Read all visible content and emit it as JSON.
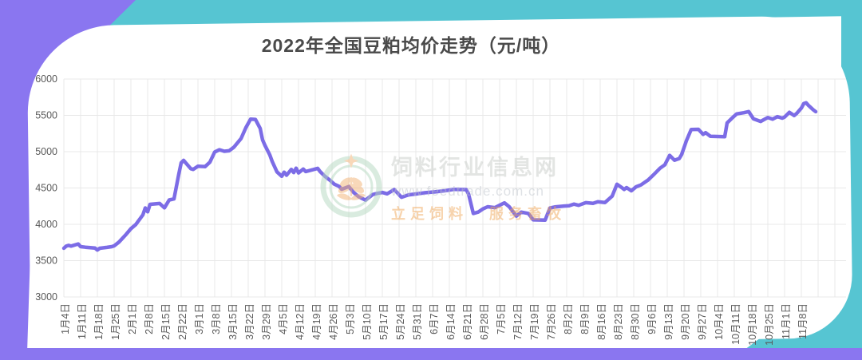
{
  "page": {
    "title": "2022年全国豆粕均价走势（元/吨）"
  },
  "watermark": {
    "site_name": "饲料行业信息网",
    "url": "www.feedtrade.com.cn",
    "slogan": "立足饲料 服务畜牧"
  },
  "colors": {
    "teal": "#56c5d2",
    "purple_shape": "#8a76f0",
    "line": "#7c6ce6",
    "grid": "#e8e8e8",
    "axis_text": "#595959",
    "title_text": "#4a4a4a",
    "watermark_green": "#b5d9c0",
    "watermark_orange": "#f2b275"
  },
  "chart_data": {
    "type": "line",
    "title": "2022年全国豆粕均价走势（元/吨）",
    "ylabel": "元/吨",
    "ylim": [
      3000,
      6000
    ],
    "y_ticks": [
      6000,
      5500,
      5000,
      4500,
      4000,
      3500,
      3000
    ],
    "grid": true,
    "legend": "none",
    "x_tick_interval_days": 7,
    "x_tick_labels": [
      "1月4日",
      "1月11日",
      "1月18日",
      "1月25日",
      "2月1日",
      "2月8日",
      "2月15日",
      "2月22日",
      "3月1日",
      "3月8日",
      "3月15日",
      "3月22日",
      "3月29日",
      "4月5日",
      "4月12日",
      "4月19日",
      "4月26日",
      "5月3日",
      "5月10日",
      "5月17日",
      "5月24日",
      "5月31日",
      "6月7日",
      "6月14日",
      "6月21日",
      "6月28日",
      "7月5日",
      "7月12日",
      "7月19日",
      "7月26日",
      "8月2日",
      "8月9日",
      "8月16日",
      "8月23日",
      "8月30日",
      "9月6日",
      "9月13日",
      "9月20日",
      "9月27日",
      "10月4日",
      "10月11日",
      "10月18日",
      "10月25日",
      "11月1日",
      "11月8日"
    ],
    "series": [
      {
        "name": "全国豆粕均价",
        "x_unit": "days_since_1月4日",
        "points": [
          [
            0,
            3670
          ],
          [
            1,
            3700
          ],
          [
            2,
            3710
          ],
          [
            3,
            3700
          ],
          [
            6,
            3730
          ],
          [
            7,
            3692
          ],
          [
            9,
            3685
          ],
          [
            13,
            3673
          ],
          [
            14,
            3646
          ],
          [
            15,
            3670
          ],
          [
            18,
            3682
          ],
          [
            20,
            3692
          ],
          [
            21,
            3703
          ],
          [
            23,
            3755
          ],
          [
            26,
            3862
          ],
          [
            28,
            3940
          ],
          [
            30,
            3996
          ],
          [
            33,
            4130
          ],
          [
            34,
            4225
          ],
          [
            35,
            4172
          ],
          [
            36,
            4275
          ],
          [
            40,
            4287
          ],
          [
            42,
            4226
          ],
          [
            44,
            4335
          ],
          [
            46,
            4350
          ],
          [
            48,
            4690
          ],
          [
            49,
            4846
          ],
          [
            50,
            4880
          ],
          [
            53,
            4766
          ],
          [
            54,
            4756
          ],
          [
            56,
            4800
          ],
          [
            59,
            4795
          ],
          [
            61,
            4856
          ],
          [
            63,
            4996
          ],
          [
            65,
            5026
          ],
          [
            67,
            5006
          ],
          [
            69,
            5012
          ],
          [
            71,
            5062
          ],
          [
            74,
            5180
          ],
          [
            76,
            5330
          ],
          [
            78,
            5448
          ],
          [
            80,
            5444
          ],
          [
            82,
            5320
          ],
          [
            83,
            5160
          ],
          [
            84,
            5086
          ],
          [
            86,
            4956
          ],
          [
            87,
            4866
          ],
          [
            89,
            4722
          ],
          [
            91,
            4662
          ],
          [
            92,
            4718
          ],
          [
            93,
            4676
          ],
          [
            95,
            4756
          ],
          [
            96,
            4712
          ],
          [
            97,
            4772
          ],
          [
            98,
            4708
          ],
          [
            100,
            4760
          ],
          [
            101,
            4726
          ],
          [
            104,
            4752
          ],
          [
            106,
            4770
          ],
          [
            107,
            4726
          ],
          [
            109,
            4662
          ],
          [
            111,
            4610
          ],
          [
            113,
            4552
          ],
          [
            115,
            4522
          ],
          [
            116,
            4482
          ],
          [
            119,
            4520
          ],
          [
            121,
            4440
          ],
          [
            123,
            4382
          ],
          [
            126,
            4333
          ],
          [
            129,
            4410
          ],
          [
            131,
            4426
          ],
          [
            133,
            4438
          ],
          [
            135,
            4420
          ],
          [
            138,
            4478
          ],
          [
            141,
            4372
          ],
          [
            144,
            4406
          ],
          [
            147,
            4418
          ],
          [
            151,
            4435
          ],
          [
            155,
            4446
          ],
          [
            159,
            4462
          ],
          [
            163,
            4481
          ],
          [
            168,
            4478
          ],
          [
            169,
            4420
          ],
          [
            171,
            4150
          ],
          [
            173,
            4168
          ],
          [
            175,
            4212
          ],
          [
            177,
            4242
          ],
          [
            180,
            4230
          ],
          [
            184,
            4296
          ],
          [
            186,
            4242
          ],
          [
            189,
            4113
          ],
          [
            191,
            4168
          ],
          [
            194,
            4150
          ],
          [
            196,
            4062
          ],
          [
            201,
            4058
          ],
          [
            203,
            4224
          ],
          [
            205,
            4238
          ],
          [
            209,
            4252
          ],
          [
            211,
            4256
          ],
          [
            213,
            4278
          ],
          [
            215,
            4262
          ],
          [
            218,
            4298
          ],
          [
            221,
            4288
          ],
          [
            223,
            4310
          ],
          [
            226,
            4300
          ],
          [
            229,
            4388
          ],
          [
            231,
            4552
          ],
          [
            233,
            4506
          ],
          [
            234,
            4480
          ],
          [
            235,
            4506
          ],
          [
            237,
            4462
          ],
          [
            239,
            4516
          ],
          [
            241,
            4542
          ],
          [
            244,
            4610
          ],
          [
            246,
            4672
          ],
          [
            249,
            4772
          ],
          [
            251,
            4820
          ],
          [
            253,
            4950
          ],
          [
            255,
            4882
          ],
          [
            257,
            4906
          ],
          [
            258,
            4960
          ],
          [
            260,
            5150
          ],
          [
            262,
            5304
          ],
          [
            265,
            5308
          ],
          [
            267,
            5238
          ],
          [
            268,
            5262
          ],
          [
            270,
            5212
          ],
          [
            276,
            5206
          ],
          [
            277,
            5396
          ],
          [
            279,
            5460
          ],
          [
            281,
            5520
          ],
          [
            284,
            5536
          ],
          [
            286,
            5552
          ],
          [
            288,
            5452
          ],
          [
            291,
            5416
          ],
          [
            294,
            5470
          ],
          [
            296,
            5448
          ],
          [
            298,
            5482
          ],
          [
            300,
            5462
          ],
          [
            301,
            5476
          ],
          [
            303,
            5542
          ],
          [
            305,
            5498
          ],
          [
            306,
            5524
          ],
          [
            308,
            5600
          ],
          [
            309,
            5662
          ],
          [
            310,
            5672
          ],
          [
            311,
            5636
          ],
          [
            313,
            5576
          ],
          [
            314,
            5550
          ]
        ]
      }
    ]
  }
}
